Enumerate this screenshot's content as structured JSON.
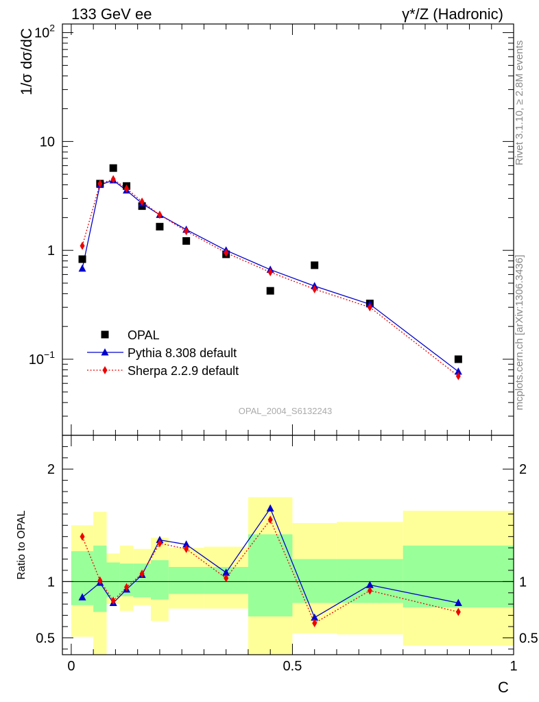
{
  "header": {
    "left": "133 GeV ee",
    "right": "γ*/Z (Hadronic)"
  },
  "side_labels": {
    "top": "Rivet 3.1.10, ≥ 2.8M events",
    "bottom": "mcplots.cern.ch [arXiv:1306.3436]"
  },
  "watermark": "OPAL_2004_S6132243",
  "colors": {
    "opal": "#000000",
    "pythia": "#0000cc",
    "sherpa": "#ee0000",
    "band_inner": "#99ff99",
    "band_outer": "#ffff99"
  },
  "chart_data": [
    {
      "type": "scatter",
      "panel": "main",
      "xlabel": "C",
      "ylabel": "1/σ dσ/dC",
      "xlim": [
        -0.02,
        1.0
      ],
      "ylim": [
        0.02,
        120
      ],
      "yscale": "log",
      "y_ticks": [
        {
          "value": 100,
          "label": "10",
          "sup": "2"
        },
        {
          "value": 10,
          "label": "10",
          "sup": ""
        },
        {
          "value": 1,
          "label": "1",
          "sup": ""
        },
        {
          "value": 0.1,
          "label": "10",
          "sup": "−1"
        }
      ],
      "legend_position": "bottom-left",
      "series": [
        {
          "name": "OPAL",
          "marker": "square",
          "x": [
            0.025,
            0.065,
            0.095,
            0.125,
            0.16,
            0.2,
            0.26,
            0.35,
            0.45,
            0.55,
            0.675,
            0.875
          ],
          "y": [
            0.83,
            4.1,
            5.7,
            3.9,
            2.55,
            1.65,
            1.22,
            0.92,
            0.425,
            0.73,
            0.325,
            0.1
          ]
        },
        {
          "name": "Pythia 8.308 default",
          "marker": "triangle",
          "line": "solid",
          "x": [
            0.025,
            0.065,
            0.095,
            0.125,
            0.16,
            0.2,
            0.26,
            0.35,
            0.45,
            0.55,
            0.675,
            0.875
          ],
          "y": [
            0.68,
            4.0,
            4.4,
            3.55,
            2.7,
            2.12,
            1.55,
            1.0,
            0.665,
            0.47,
            0.32,
            0.077
          ]
        },
        {
          "name": "Sherpa 2.2.9 default",
          "marker": "diamond",
          "line": "dotted",
          "x": [
            0.025,
            0.065,
            0.095,
            0.125,
            0.16,
            0.2,
            0.26,
            0.35,
            0.45,
            0.55,
            0.675,
            0.875
          ],
          "y": [
            1.1,
            4.1,
            4.5,
            3.7,
            2.8,
            2.12,
            1.5,
            0.95,
            0.63,
            0.44,
            0.3,
            0.07
          ]
        }
      ]
    },
    {
      "type": "scatter",
      "panel": "ratio",
      "xlabel": "C",
      "ylabel": "Ratio to OPAL",
      "xlim": [
        -0.02,
        1.0
      ],
      "ylim": [
        0.35,
        2.3
      ],
      "x_ticks": [
        {
          "value": 0,
          "label": "0"
        },
        {
          "value": 0.5,
          "label": "0.5"
        },
        {
          "value": 1,
          "label": "1"
        }
      ],
      "y_ticks": [
        {
          "value": 2,
          "label": "2"
        },
        {
          "value": 1,
          "label": "1"
        },
        {
          "value": 0.5,
          "label": "0.5"
        }
      ],
      "bands": [
        {
          "x0": 0.0,
          "x1": 0.05,
          "inner": [
            0.79,
            1.27
          ],
          "outer": [
            0.51,
            1.5
          ]
        },
        {
          "x0": 0.05,
          "x1": 0.08,
          "inner": [
            0.73,
            1.32
          ],
          "outer": [
            0.35,
            1.62
          ]
        },
        {
          "x0": 0.08,
          "x1": 0.11,
          "inner": [
            0.86,
            1.17
          ],
          "outer": [
            0.8,
            1.25
          ]
        },
        {
          "x0": 0.11,
          "x1": 0.14,
          "inner": [
            0.87,
            1.16
          ],
          "outer": [
            0.74,
            1.32
          ]
        },
        {
          "x0": 0.14,
          "x1": 0.18,
          "inner": [
            0.86,
            1.16
          ],
          "outer": [
            0.79,
            1.29
          ]
        },
        {
          "x0": 0.18,
          "x1": 0.22,
          "inner": [
            0.84,
            1.19
          ],
          "outer": [
            0.65,
            1.39
          ]
        },
        {
          "x0": 0.22,
          "x1": 0.3,
          "inner": [
            0.89,
            1.13
          ],
          "outer": [
            0.76,
            1.3
          ]
        },
        {
          "x0": 0.3,
          "x1": 0.4,
          "inner": [
            0.89,
            1.13
          ],
          "outer": [
            0.76,
            1.31
          ]
        },
        {
          "x0": 0.4,
          "x1": 0.5,
          "inner": [
            0.69,
            1.42
          ],
          "outer": [
            0.35,
            1.75
          ]
        },
        {
          "x0": 0.5,
          "x1": 0.6,
          "inner": [
            0.81,
            1.2
          ],
          "outer": [
            0.54,
            1.52
          ]
        },
        {
          "x0": 0.6,
          "x1": 0.75,
          "inner": [
            0.81,
            1.2
          ],
          "outer": [
            0.53,
            1.53
          ]
        },
        {
          "x0": 0.75,
          "x1": 1.0,
          "inner": [
            0.77,
            1.32
          ],
          "outer": [
            0.43,
            1.63
          ]
        }
      ],
      "series": [
        {
          "name": "Pythia 8.308 default",
          "marker": "triangle",
          "line": "solid",
          "x": [
            0.025,
            0.065,
            0.095,
            0.125,
            0.16,
            0.2,
            0.26,
            0.35,
            0.45,
            0.55,
            0.675,
            0.875
          ],
          "y": [
            0.86,
            0.99,
            0.81,
            0.93,
            1.06,
            1.37,
            1.33,
            1.08,
            1.65,
            0.68,
            0.97,
            0.81
          ]
        },
        {
          "name": "Sherpa 2.2.9 default",
          "marker": "diamond",
          "line": "dotted",
          "x": [
            0.025,
            0.065,
            0.095,
            0.125,
            0.16,
            0.2,
            0.26,
            0.35,
            0.45,
            0.55,
            0.675,
            0.875
          ],
          "y": [
            1.4,
            1.01,
            0.83,
            0.95,
            1.07,
            1.34,
            1.29,
            1.03,
            1.55,
            0.63,
            0.92,
            0.73
          ]
        }
      ]
    }
  ]
}
